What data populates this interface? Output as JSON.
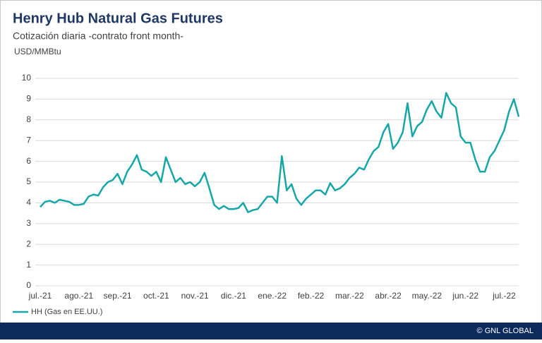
{
  "chart_data": {
    "type": "line",
    "title": "Henry Hub Natural Gas Futures",
    "subtitle": "Cotización diaria -contrato front month-",
    "y_label": "USD/MMBtu",
    "footer": "© GNL GLOBAL",
    "categories": [
      "jul.-21",
      null,
      null,
      null,
      null,
      null,
      null,
      null,
      "ago.-21",
      null,
      null,
      null,
      null,
      null,
      null,
      null,
      "sep.-21",
      null,
      null,
      null,
      null,
      null,
      null,
      null,
      "oct.-21",
      null,
      null,
      null,
      null,
      null,
      null,
      null,
      "nov.-21",
      null,
      null,
      null,
      null,
      null,
      null,
      null,
      "dic.-21",
      null,
      null,
      null,
      null,
      null,
      null,
      null,
      "ene.-22",
      null,
      null,
      null,
      null,
      null,
      null,
      null,
      "feb.-22",
      null,
      null,
      null,
      null,
      null,
      null,
      null,
      "mar.-22",
      null,
      null,
      null,
      null,
      null,
      null,
      null,
      "abr.-22",
      null,
      null,
      null,
      null,
      null,
      null,
      null,
      "may.-22",
      null,
      null,
      null,
      null,
      null,
      null,
      null,
      "jun.-22",
      null,
      null,
      null,
      null,
      null,
      null,
      null,
      "jul.-22",
      null,
      null,
      null
    ],
    "series": [
      {
        "name": "HH (Gas en EE.UU.)",
        "color": "#17a7a8",
        "values": [
          3.8,
          4.05,
          4.1,
          4.0,
          4.15,
          4.1,
          4.05,
          3.9,
          3.9,
          3.95,
          4.3,
          4.4,
          4.35,
          4.75,
          5.0,
          5.1,
          5.4,
          4.9,
          5.5,
          5.85,
          6.3,
          5.6,
          5.5,
          5.3,
          5.5,
          5.0,
          6.2,
          5.6,
          5.0,
          5.2,
          4.9,
          5.0,
          4.8,
          5.0,
          5.45,
          4.7,
          3.9,
          3.7,
          3.85,
          3.7,
          3.7,
          3.75,
          4.0,
          3.55,
          3.65,
          3.7,
          4.0,
          4.3,
          4.3,
          4.0,
          6.25,
          4.6,
          4.9,
          4.2,
          3.9,
          4.2,
          4.4,
          4.6,
          4.6,
          4.4,
          4.95,
          4.6,
          4.7,
          4.9,
          5.2,
          5.4,
          5.7,
          5.6,
          6.1,
          6.5,
          6.7,
          7.4,
          7.8,
          6.6,
          6.9,
          7.4,
          8.8,
          7.2,
          7.7,
          7.9,
          8.5,
          8.9,
          8.4,
          8.1,
          9.3,
          8.8,
          8.6,
          7.2,
          6.9,
          6.9,
          6.1,
          5.5,
          5.5,
          6.2,
          6.5,
          7.0,
          7.5,
          8.4,
          9.0,
          8.15
        ]
      }
    ],
    "ylim": [
      0,
      10
    ],
    "yticks": [
      0,
      1,
      2,
      3,
      4,
      5,
      6,
      7,
      8,
      9,
      10
    ],
    "grid": true,
    "legend": "bottom-left"
  }
}
